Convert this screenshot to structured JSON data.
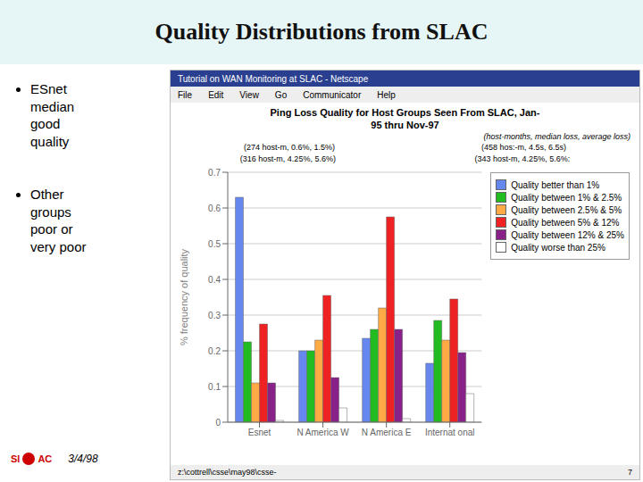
{
  "chart_data": {
    "type": "bar",
    "title": "Quality Distributions from SLAC",
    "subtitle": "(host-months, median loss, average loss)",
    "annotations": [
      "Ping Loss Quality for Host Groups Seen From SLAC, Jan-",
      "95 thru Nov-97",
      "(274 host-m, 0.6%, 1.5%)",
      "(458 hos:-m, 4.5s, 6.5s)",
      "(316 host-m, 4.25%, 5.6%)",
      "(343 host-m, 4.25%, 5.6%:",
      "ESnet\nmedian\ngood\nquality",
      "Other\ngroups\npoor or\nvery poor",
      "3/4/98",
      "Sl",
      "AC",
      "Tutorial on WAN Monitoring at SLAC - Netscape",
      "File",
      "Edit",
      "View",
      "Go",
      "Communicator",
      "Help",
      "z:\\cottrell\\csse\\may98\\csse-",
      "7"
    ],
    "categories": [
      "Esnet",
      "N America W",
      "N America E",
      "Internat onal"
    ],
    "series": [
      {
        "name": "Quality better than 1%",
        "color": "#6688ee",
        "values": [
          0.63,
          0.2,
          0.235,
          0.165
        ]
      },
      {
        "name": "Quality between 1% & 2.5%",
        "color": "#22bb22",
        "values": [
          0.225,
          0.2,
          0.26,
          0.285
        ]
      },
      {
        "name": "Quality between 2.5% & 5%",
        "color": "#ffaa44",
        "values": [
          0.11,
          0.23,
          0.32,
          0.23
        ]
      },
      {
        "name": "Quality between 5% & 12%",
        "color": "#ee2222",
        "values": [
          0.275,
          0.355,
          0.575,
          0.345
        ]
      },
      {
        "name": "Quality between 12% & 25%",
        "color": "#882288",
        "values": [
          0.11,
          0.125,
          0.26,
          0.195
        ]
      },
      {
        "name": "Quality worse than 25%",
        "color": "#ffffff",
        "values": [
          0.005,
          0.04,
          0.01,
          0.08
        ]
      }
    ],
    "ylabel": "% frequency of quality",
    "ylim": [
      0,
      0.7
    ],
    "yticks": [
      0,
      0.1,
      0.2,
      0.3,
      0.4,
      0.5,
      0.6,
      0.7
    ],
    "grid": true,
    "legend": "upper right"
  }
}
